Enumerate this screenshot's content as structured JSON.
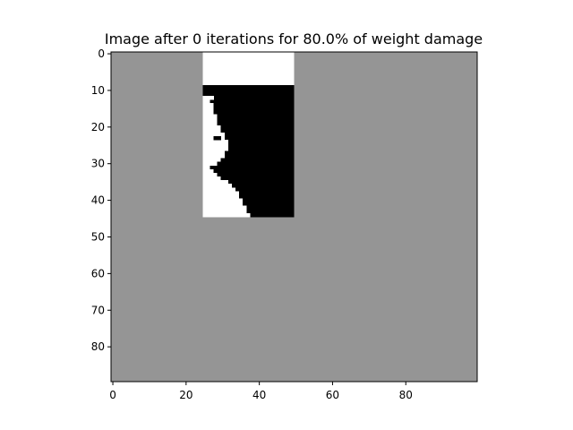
{
  "chart_data": {
    "type": "heatmap",
    "title": "Image after 0 iterations for 80.0% of weight damage",
    "xlabel": "",
    "ylabel": "",
    "xlim": [
      -0.5,
      99.5
    ],
    "ylim": [
      89.5,
      -0.5
    ],
    "grid": false,
    "colors": {
      "background": "#959595",
      "white": "#ffffff",
      "black": "#000000"
    },
    "x_ticks": [
      0,
      20,
      40,
      60,
      80
    ],
    "y_ticks": [
      0,
      10,
      20,
      30,
      40,
      50,
      60,
      70,
      80
    ],
    "x_tick_labels": [
      "0",
      "20",
      "40",
      "60",
      "80"
    ],
    "y_tick_labels": [
      "0",
      "10",
      "20",
      "30",
      "40",
      "50",
      "60",
      "70",
      "80"
    ],
    "image_size": {
      "cols": 100,
      "rows": 90
    },
    "background_value": "gray",
    "content_region": {
      "col_start": 25,
      "col_end": 49,
      "row_start": 0,
      "row_end": 44
    },
    "white_top_rows": [
      0,
      8
    ],
    "rows": [
      {
        "row": 9,
        "white_from": 25,
        "white_to": 24
      },
      {
        "row": 10,
        "white_from": 25,
        "white_to": 24
      },
      {
        "row": 11,
        "white_from": 25,
        "white_to": 24
      },
      {
        "row": 12,
        "white_from": 25,
        "white_to": 27
      },
      {
        "row": 13,
        "white_from": 25,
        "white_to": 26
      },
      {
        "row": 14,
        "white_from": 25,
        "white_to": 27
      },
      {
        "row": 15,
        "white_from": 25,
        "white_to": 27
      },
      {
        "row": 16,
        "white_from": 25,
        "white_to": 27
      },
      {
        "row": 17,
        "white_from": 25,
        "white_to": 28
      },
      {
        "row": 18,
        "white_from": 25,
        "white_to": 28
      },
      {
        "row": 19,
        "white_from": 25,
        "white_to": 28
      },
      {
        "row": 20,
        "white_from": 25,
        "white_to": 29
      },
      {
        "row": 21,
        "white_from": 25,
        "white_to": 29
      },
      {
        "row": 22,
        "white_from": 25,
        "white_to": 30
      },
      {
        "row": 23,
        "white_from": 25,
        "white_to": 30
      },
      {
        "row": 24,
        "white_from": 25,
        "white_to": 31
      },
      {
        "row": 25,
        "white_from": 25,
        "white_to": 31
      },
      {
        "row": 26,
        "white_from": 25,
        "white_to": 31
      },
      {
        "row": 27,
        "white_from": 25,
        "white_to": 30
      },
      {
        "row": 28,
        "white_from": 25,
        "white_to": 30
      },
      {
        "row": 29,
        "white_from": 25,
        "white_to": 29
      },
      {
        "row": 30,
        "white_from": 25,
        "white_to": 28
      },
      {
        "row": 31,
        "white_from": 25,
        "white_to": 26
      },
      {
        "row": 32,
        "white_from": 25,
        "white_to": 27
      },
      {
        "row": 33,
        "white_from": 25,
        "white_to": 28
      },
      {
        "row": 34,
        "white_from": 25,
        "white_to": 29
      },
      {
        "row": 35,
        "white_from": 25,
        "white_to": 31
      },
      {
        "row": 36,
        "white_from": 25,
        "white_to": 32
      },
      {
        "row": 37,
        "white_from": 25,
        "white_to": 33
      },
      {
        "row": 38,
        "white_from": 25,
        "white_to": 34
      },
      {
        "row": 39,
        "white_from": 25,
        "white_to": 34
      },
      {
        "row": 40,
        "white_from": 25,
        "white_to": 35
      },
      {
        "row": 41,
        "white_from": 25,
        "white_to": 35
      },
      {
        "row": 42,
        "white_from": 25,
        "white_to": 36
      },
      {
        "row": 43,
        "white_from": 25,
        "white_to": 36
      },
      {
        "row": 44,
        "white_from": 25,
        "white_to": 37
      }
    ],
    "black_dots": [
      [
        23,
        28
      ],
      [
        23,
        29
      ]
    ],
    "white_dots": [
      [
        12,
        27
      ],
      [
        13,
        26
      ]
    ]
  }
}
